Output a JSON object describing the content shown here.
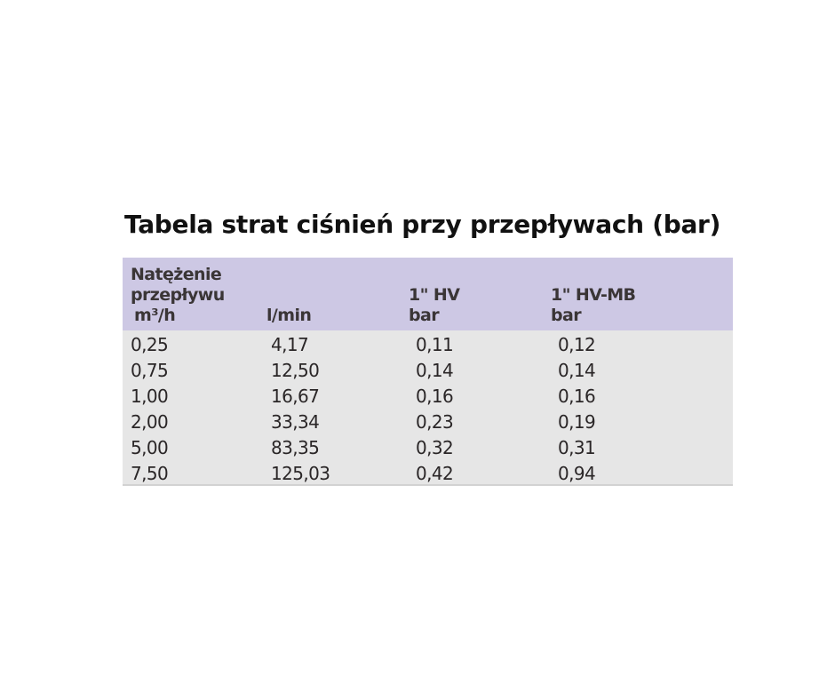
{
  "title": "Tabela strat ciśnień przy przepływach (bar)",
  "table": {
    "header": [
      [
        "Natężenie",
        "przepływu",
        "m³/h"
      ],
      [
        "l/min"
      ],
      [
        "1\" HV",
        "bar"
      ],
      [
        "1\" HV-MB",
        "bar"
      ]
    ],
    "rows": [
      [
        "0,25",
        "4,17",
        "0,11",
        "0,12"
      ],
      [
        "0,75",
        "12,50",
        "0,14",
        "0,14"
      ],
      [
        "1,00",
        "16,67",
        "0,16",
        "0,16"
      ],
      [
        "2,00",
        "33,34",
        "0,23",
        "0,19"
      ],
      [
        "5,00",
        "83,35",
        "0,32",
        "0,31"
      ],
      [
        "7,50",
        "125,03",
        "0,42",
        "0,94"
      ]
    ]
  }
}
